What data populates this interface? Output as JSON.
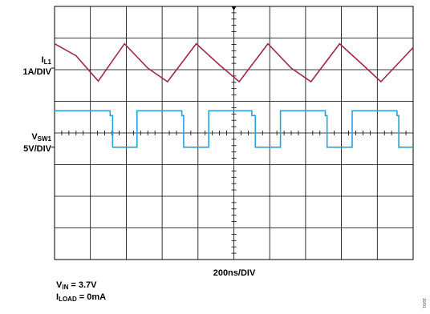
{
  "chart_data": {
    "type": "line",
    "time_div_label": "200ns/DIV",
    "grid": {
      "divisions_x": 10,
      "divisions_y": 8,
      "grid_on": true
    },
    "channels": [
      {
        "name": "IL1",
        "label_main": "I",
        "label_sub": "L1",
        "scale_label": "1A/DIV",
        "color": "#a0284a",
        "shape": "triangle",
        "points_div": [
          [
            0,
            1.18
          ],
          [
            0.6,
            1.56
          ],
          [
            1.22,
            2.36
          ],
          [
            1.95,
            1.18
          ],
          [
            2.6,
            1.95
          ],
          [
            3.15,
            2.38
          ],
          [
            3.95,
            1.18
          ],
          [
            4.6,
            1.85
          ],
          [
            5.15,
            2.38
          ],
          [
            5.95,
            1.18
          ],
          [
            6.6,
            1.95
          ],
          [
            7.15,
            2.38
          ],
          [
            7.95,
            1.18
          ],
          [
            8.6,
            1.85
          ],
          [
            9.1,
            2.38
          ],
          [
            10,
            1.3
          ]
        ]
      },
      {
        "name": "VSW1",
        "label_main": "V",
        "label_sub": "SW1",
        "scale_label": "5V/DIV",
        "color": "#29a3d6",
        "shape": "square",
        "points_div": [
          [
            0,
            3.3
          ],
          [
            1.55,
            3.3
          ],
          [
            1.55,
            3.45
          ],
          [
            1.62,
            3.45
          ],
          [
            1.62,
            4.45
          ],
          [
            2.3,
            4.45
          ],
          [
            2.3,
            3.3
          ],
          [
            3.55,
            3.3
          ],
          [
            3.55,
            3.45
          ],
          [
            3.6,
            3.45
          ],
          [
            3.6,
            4.45
          ],
          [
            4.3,
            4.45
          ],
          [
            4.3,
            3.3
          ],
          [
            5.5,
            3.3
          ],
          [
            5.5,
            3.45
          ],
          [
            5.6,
            3.45
          ],
          [
            5.6,
            4.45
          ],
          [
            6.3,
            4.45
          ],
          [
            6.3,
            3.3
          ],
          [
            7.55,
            3.3
          ],
          [
            7.55,
            3.45
          ],
          [
            7.6,
            3.45
          ],
          [
            7.6,
            4.45
          ],
          [
            8.3,
            4.45
          ],
          [
            8.3,
            3.3
          ],
          [
            9.55,
            3.3
          ],
          [
            9.55,
            3.45
          ],
          [
            9.6,
            3.45
          ],
          [
            9.6,
            4.45
          ],
          [
            10,
            4.45
          ]
        ]
      }
    ],
    "ch1_ground_marker_div": 1.95,
    "ch2_ground_marker_div": 4.45,
    "conditions": [
      {
        "main": "V",
        "sub": "IN",
        "value": " = 3.7V"
      },
      {
        "main": "I",
        "sub": "LOAD",
        "value": " = 0mA"
      }
    ]
  },
  "figure_id": "10/01"
}
